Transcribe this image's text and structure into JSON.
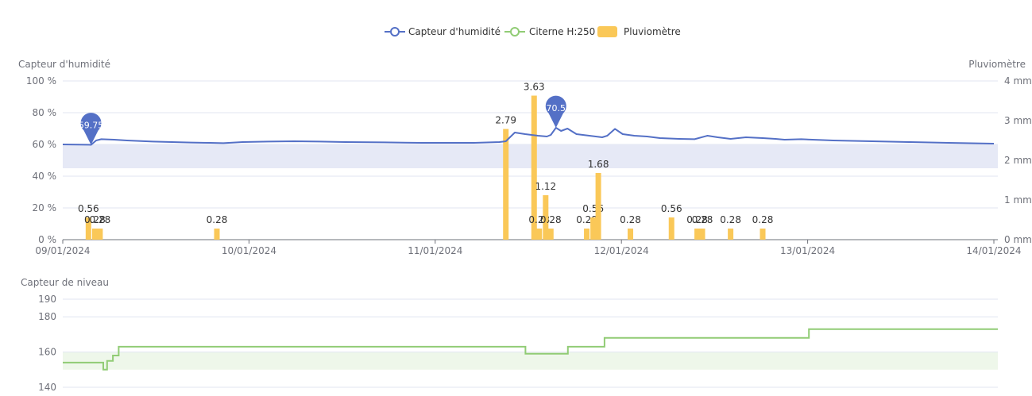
{
  "legend": [
    {
      "name": "Capteur d'humidité",
      "color": "#5470c6",
      "kind": "line"
    },
    {
      "name": "Citerne H:250",
      "color": "#91cc75",
      "kind": "line"
    },
    {
      "name": "Pluviomètre",
      "color": "#fac858",
      "kind": "bar"
    }
  ],
  "chart_data": [
    {
      "type": "line",
      "ylabel_left": "Capteur d'humidité",
      "ylabel_right": "Pluviomètre",
      "x_ticks": [
        "09/01/2024",
        "10/01/2024",
        "11/01/2024",
        "12/01/2024",
        "13/01/2024",
        "14/01/2024"
      ],
      "y_left_ticks": [
        "0 %",
        "20 %",
        "40 %",
        "60 %",
        "80 %",
        "100 %"
      ],
      "y_left_lim": [
        0,
        100
      ],
      "y_right_ticks": [
        "0 mm",
        "1 mm",
        "2 mm",
        "3 mm",
        "4 mm"
      ],
      "y_right_lim": [
        0,
        4
      ],
      "band": [
        45,
        60
      ],
      "x_range_days": [
        0,
        5
      ],
      "series": [
        {
          "name": "Capteur d'humidité",
          "color": "#5470c6",
          "axis": "left",
          "points": [
            [
              0.0,
              60.0
            ],
            [
              0.2,
              59.8
            ],
            [
              0.22,
              59.75
            ],
            [
              0.26,
              62.5
            ],
            [
              0.3,
              63.3
            ],
            [
              0.4,
              63.0
            ],
            [
              0.5,
              62.5
            ],
            [
              0.7,
              61.8
            ],
            [
              1.0,
              61.2
            ],
            [
              1.15,
              61.0
            ],
            [
              1.25,
              60.8
            ],
            [
              1.4,
              61.5
            ],
            [
              1.6,
              61.8
            ],
            [
              1.8,
              62.0
            ],
            [
              2.0,
              61.8
            ],
            [
              2.2,
              61.5
            ],
            [
              2.5,
              61.3
            ],
            [
              2.8,
              61.0
            ],
            [
              3.2,
              61.0
            ],
            [
              3.4,
              61.5
            ],
            [
              3.45,
              62.0
            ],
            [
              3.52,
              67.5
            ],
            [
              3.6,
              66.5
            ],
            [
              3.7,
              65.5
            ],
            [
              3.77,
              65.0
            ],
            [
              3.8,
              66.0
            ],
            [
              3.84,
              70.5
            ],
            [
              3.88,
              68.5
            ],
            [
              3.93,
              70.0
            ],
            [
              4.0,
              66.5
            ],
            [
              4.1,
              65.5
            ],
            [
              4.2,
              64.5
            ],
            [
              4.24,
              65.5
            ],
            [
              4.3,
              69.8
            ],
            [
              4.36,
              66.5
            ],
            [
              4.45,
              65.5
            ],
            [
              4.55,
              65.0
            ],
            [
              4.65,
              64.0
            ],
            [
              4.8,
              63.5
            ],
            [
              4.92,
              63.3
            ],
            [
              5.02,
              65.5
            ],
            [
              5.1,
              64.5
            ],
            [
              5.2,
              63.5
            ],
            [
              5.32,
              64.5
            ],
            [
              5.45,
              64.0
            ],
            [
              5.55,
              63.5
            ],
            [
              5.62,
              63.0
            ],
            [
              5.75,
              63.3
            ],
            [
              5.9,
              62.8
            ],
            [
              6.0,
              62.5
            ],
            [
              6.3,
              62.0
            ],
            [
              6.6,
              61.5
            ],
            [
              6.9,
              61.0
            ],
            [
              7.25,
              60.5
            ]
          ]
        }
      ],
      "markers": [
        {
          "x": 0.22,
          "y": 59.75,
          "label": "59.75"
        },
        {
          "x": 3.84,
          "y": 70.5,
          "label": "70.5"
        }
      ],
      "bars": {
        "name": "Pluviomètre",
        "color": "#fac858",
        "axis": "right",
        "x": [
          0.2,
          0.25,
          0.29,
          1.2,
          3.45,
          3.67,
          3.71,
          3.76,
          3.8,
          4.08,
          4.13,
          4.17,
          4.42,
          4.74,
          4.94,
          4.98,
          5.2,
          5.45
        ],
        "values": [
          0.56,
          0.28,
          0.28,
          0.28,
          2.79,
          3.63,
          0.28,
          1.12,
          0.28,
          0.28,
          0.56,
          1.68,
          0.28,
          0.56,
          0.28,
          0.28,
          0.28,
          0.28
        ],
        "labels": [
          "0.56",
          "0.28",
          "0.28",
          "0.28",
          "2.79",
          "3.63",
          "0.28",
          "1.12",
          "0.28",
          "0.28",
          "0.56",
          "1.68",
          "0.28",
          "0.56",
          "0.28",
          "0.28",
          "0.28",
          "0.28"
        ]
      }
    },
    {
      "type": "line",
      "ylabel": "Capteur de niveau",
      "y_ticks": [
        "140",
        "160",
        "180",
        "190"
      ],
      "y_lim": [
        140,
        190
      ],
      "band": [
        150,
        160
      ],
      "series": [
        {
          "name": "Citerne H:250",
          "color": "#91cc75",
          "points": [
            [
              0.0,
              154
            ],
            [
              0.21,
              154
            ],
            [
              0.21,
              150
            ],
            [
              0.23,
              150
            ],
            [
              0.23,
              155
            ],
            [
              0.26,
              155
            ],
            [
              0.26,
              158
            ],
            [
              0.29,
              158
            ],
            [
              0.29,
              163
            ],
            [
              2.4,
              163
            ],
            [
              2.4,
              159
            ],
            [
              2.62,
              159
            ],
            [
              2.62,
              163
            ],
            [
              2.81,
              163
            ],
            [
              2.81,
              168
            ],
            [
              3.87,
              168
            ],
            [
              3.87,
              173
            ],
            [
              4.85,
              173
            ]
          ]
        }
      ]
    }
  ]
}
